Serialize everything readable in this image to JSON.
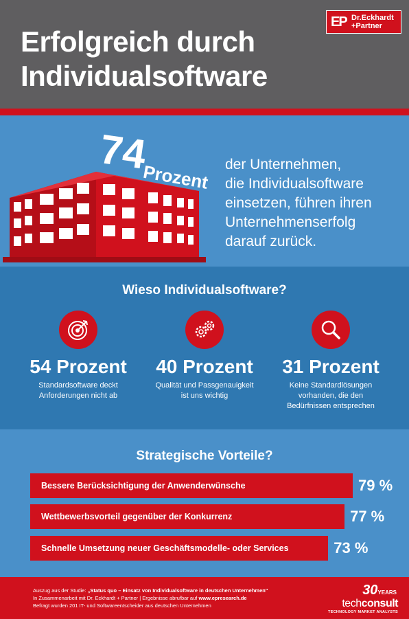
{
  "header": {
    "title_line1": "Erfolgreich durch",
    "title_line2": "Individualsoftware",
    "logo_mark": "EP",
    "logo_line1": "Dr.Eckhardt",
    "logo_line2": "+Partner"
  },
  "hero": {
    "number": "74",
    "unit": "Prozent",
    "text_lines": [
      "der Unternehmen,",
      "die Individualsoftware",
      "einsetzen, führen ihren",
      "Unternehmenserfolg",
      "darauf zurück."
    ]
  },
  "reasons": {
    "title": "Wieso Individualsoftware?",
    "items": [
      {
        "icon": "target-icon",
        "value": "54 Prozent",
        "label_lines": [
          "Standardsoftware deckt",
          "Anforderungen nicht ab"
        ]
      },
      {
        "icon": "gears-icon",
        "value": "40 Prozent",
        "label_lines": [
          "Qualität und Passgenauigkeit",
          "ist uns wichtig"
        ]
      },
      {
        "icon": "magnifier-icon",
        "value": "31 Prozent",
        "label_lines": [
          "Keine Standardlösungen",
          "vorhanden, die den",
          "Bedürfnissen entsprechen"
        ]
      }
    ]
  },
  "advantages": {
    "title": "Strategische Vorteile?",
    "bars": [
      {
        "label": "Bessere Berücksichtigung der Anwenderwünsche",
        "value": 79,
        "value_label": "79 %"
      },
      {
        "label": "Wettbewerbsvorteil gegenüber der Konkurrenz",
        "value": 77,
        "value_label": "77 %"
      },
      {
        "label": "Schnelle Umsetzung neuer Geschäftsmodelle- oder Services",
        "value": 73,
        "value_label": "73 %"
      }
    ]
  },
  "footer": {
    "line1_prefix": "Auszug aus der Studie: ",
    "line1_bold": "„Status quo – Einsatz von Individualsoftware in deutschen Unternehmen\"",
    "line2_prefix": "In Zusammenarbeit mit Dr. Eckhardt + Partner | Ergebnisse abrufbar auf ",
    "line2_bold": "www.epresearch.de",
    "line3": "Befragt wurden 201 IT- und Softwareentscheider aus deutschen Unternehmen",
    "brand_years": "30",
    "brand_years_label": "YEARS",
    "brand_name_thin": "tech",
    "brand_name_bold": "consult",
    "brand_tagline": "TECHNOLOGY MARKET ANALYSTS"
  },
  "colors": {
    "red": "#d0111d",
    "header_gray": "#5f5e60",
    "blue_light": "#4a90c9",
    "blue_dark": "#2f78b1"
  }
}
